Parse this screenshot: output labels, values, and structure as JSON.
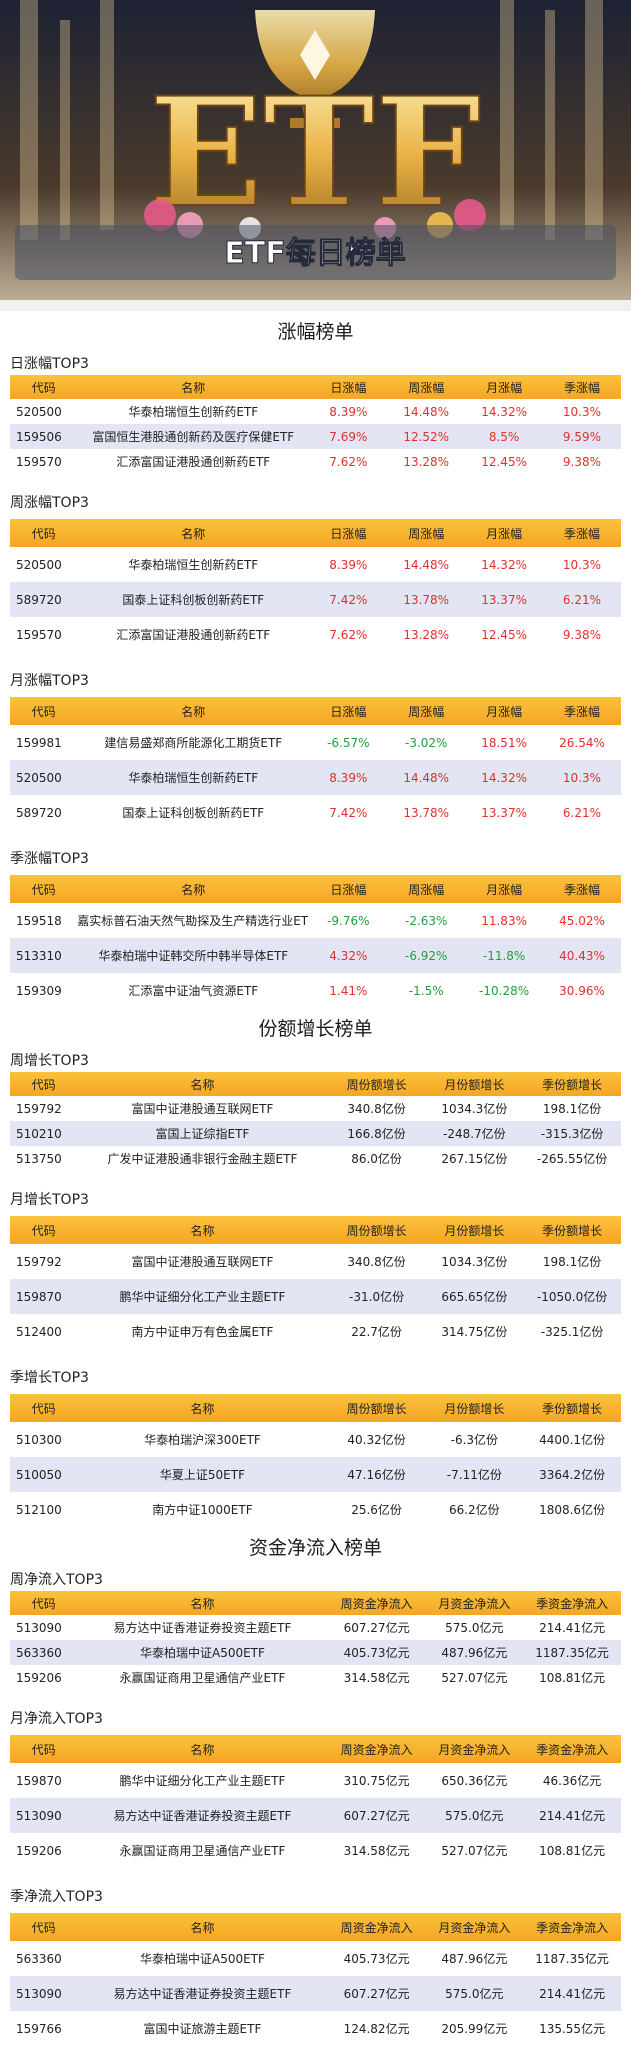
{
  "header": {
    "banner_text": "ETF",
    "title": "ETF每日榜单"
  },
  "sections": [
    {
      "title": "涨幅榜单",
      "value_colors": {
        "up": "#e0302c",
        "down": "#23a03a"
      },
      "tables": [
        {
          "title": "日涨幅TOP3",
          "columns": [
            "代码",
            "名称",
            "日涨幅",
            "周涨幅",
            "月涨幅",
            "季涨幅"
          ],
          "rows": [
            [
              "520500",
              "华泰柏瑞恒生创新药ETF",
              "8.39%",
              "14.48%",
              "14.32%",
              "10.3%"
            ],
            [
              "159506",
              "富国恒生港股通创新药及医疗保健ETF",
              "7.69%",
              "12.52%",
              "8.5%",
              "9.59%"
            ],
            [
              "159570",
              "汇添富国证港股通创新药ETF",
              "7.62%",
              "13.28%",
              "12.45%",
              "9.38%"
            ]
          ]
        },
        {
          "title": "周涨幅TOP3",
          "columns": [
            "代码",
            "名称",
            "日涨幅",
            "周涨幅",
            "月涨幅",
            "季涨幅"
          ],
          "rows": [
            [
              "520500",
              "华泰柏瑞恒生创新药ETF",
              "8.39%",
              "14.48%",
              "14.32%",
              "10.3%"
            ],
            [
              "589720",
              "国泰上证科创板创新药ETF",
              "7.42%",
              "13.78%",
              "13.37%",
              "6.21%"
            ],
            [
              "159570",
              "汇添富国证港股通创新药ETF",
              "7.62%",
              "13.28%",
              "12.45%",
              "9.38%"
            ]
          ]
        },
        {
          "title": "月涨幅TOP3",
          "columns": [
            "代码",
            "名称",
            "日涨幅",
            "周涨幅",
            "月涨幅",
            "季涨幅"
          ],
          "rows": [
            [
              "159981",
              "建信易盛郑商所能源化工期货ETF",
              "-6.57%",
              "-3.02%",
              "18.51%",
              "26.54%"
            ],
            [
              "520500",
              "华泰柏瑞恒生创新药ETF",
              "8.39%",
              "14.48%",
              "14.32%",
              "10.3%"
            ],
            [
              "589720",
              "国泰上证科创板创新药ETF",
              "7.42%",
              "13.78%",
              "13.37%",
              "6.21%"
            ]
          ]
        },
        {
          "title": "季涨幅TOP3",
          "columns": [
            "代码",
            "名称",
            "日涨幅",
            "周涨幅",
            "月涨幅",
            "季涨幅"
          ],
          "rows": [
            [
              "159518",
              "嘉实标普石油天然气勘探及生产精选行业ETF",
              "-9.76%",
              "-2.63%",
              "11.83%",
              "45.02%"
            ],
            [
              "513310",
              "华泰柏瑞中证韩交所中韩半导体ETF",
              "4.32%",
              "-6.92%",
              "-11.8%",
              "40.43%"
            ],
            [
              "159309",
              "汇添富中证油气资源ETF",
              "1.41%",
              "-1.5%",
              "-10.28%",
              "30.96%"
            ]
          ]
        }
      ]
    },
    {
      "title": "份额增长榜单",
      "tables": [
        {
          "title": "周增长TOP3",
          "columns": [
            "代码",
            "名称",
            "周份额增长",
            "月份额增长",
            "季份额增长"
          ],
          "rows": [
            [
              "159792",
              "富国中证港股通互联网ETF",
              "340.8亿份",
              "1034.3亿份",
              "198.1亿份"
            ],
            [
              "510210",
              "富国上证综指ETF",
              "166.8亿份",
              "-248.7亿份",
              "-315.3亿份"
            ],
            [
              "513750",
              "广发中证港股通非银行金融主题ETF",
              "86.0亿份",
              "267.15亿份",
              "-265.55亿份"
            ]
          ]
        },
        {
          "title": "月增长TOP3",
          "columns": [
            "代码",
            "名称",
            "周份额增长",
            "月份额增长",
            "季份额增长"
          ],
          "rows": [
            [
              "159792",
              "富国中证港股通互联网ETF",
              "340.8亿份",
              "1034.3亿份",
              "198.1亿份"
            ],
            [
              "159870",
              "鹏华中证细分化工产业主题ETF",
              "-31.0亿份",
              "665.65亿份",
              "-1050.0亿份"
            ],
            [
              "512400",
              "南方中证申万有色金属ETF",
              "22.7亿份",
              "314.75亿份",
              "-325.1亿份"
            ]
          ]
        },
        {
          "title": "季增长TOP3",
          "columns": [
            "代码",
            "名称",
            "周份额增长",
            "月份额增长",
            "季份额增长"
          ],
          "rows": [
            [
              "510300",
              "华泰柏瑞沪深300ETF",
              "40.32亿份",
              "-6.3亿份",
              "4400.1亿份"
            ],
            [
              "510050",
              "华夏上证50ETF",
              "47.16亿份",
              "-7.11亿份",
              "3364.2亿份"
            ],
            [
              "512100",
              "南方中证1000ETF",
              "25.6亿份",
              "66.2亿份",
              "1808.6亿份"
            ]
          ]
        }
      ]
    },
    {
      "title": "资金净流入榜单",
      "tables": [
        {
          "title": "周净流入TOP3",
          "columns": [
            "代码",
            "名称",
            "周资金净流入",
            "月资金净流入",
            "季资金净流入"
          ],
          "rows": [
            [
              "513090",
              "易方达中证香港证券投资主题ETF",
              "607.27亿元",
              "575.0亿元",
              "214.41亿元"
            ],
            [
              "563360",
              "华泰柏瑞中证A500ETF",
              "405.73亿元",
              "487.96亿元",
              "1187.35亿元"
            ],
            [
              "159206",
              "永赢国证商用卫星通信产业ETF",
              "314.58亿元",
              "527.07亿元",
              "108.81亿元"
            ]
          ]
        },
        {
          "title": "月净流入TOP3",
          "columns": [
            "代码",
            "名称",
            "周资金净流入",
            "月资金净流入",
            "季资金净流入"
          ],
          "rows": [
            [
              "159870",
              "鹏华中证细分化工产业主题ETF",
              "310.75亿元",
              "650.36亿元",
              "46.36亿元"
            ],
            [
              "513090",
              "易方达中证香港证券投资主题ETF",
              "607.27亿元",
              "575.0亿元",
              "214.41亿元"
            ],
            [
              "159206",
              "永赢国证商用卫星通信产业ETF",
              "314.58亿元",
              "527.07亿元",
              "108.81亿元"
            ]
          ]
        },
        {
          "title": "季净流入TOP3",
          "columns": [
            "代码",
            "名称",
            "周资金净流入",
            "月资金净流入",
            "季资金净流入"
          ],
          "rows": [
            [
              "563360",
              "华泰柏瑞中证A500ETF",
              "405.73亿元",
              "487.96亿元",
              "1187.35亿元"
            ],
            [
              "513090",
              "易方达中证香港证券投资主题ETF",
              "607.27亿元",
              "575.0亿元",
              "214.41亿元"
            ],
            [
              "159766",
              "富国中证旅游主题ETF",
              "124.82亿元",
              "205.99亿元",
              "135.55亿元"
            ]
          ]
        }
      ]
    }
  ]
}
